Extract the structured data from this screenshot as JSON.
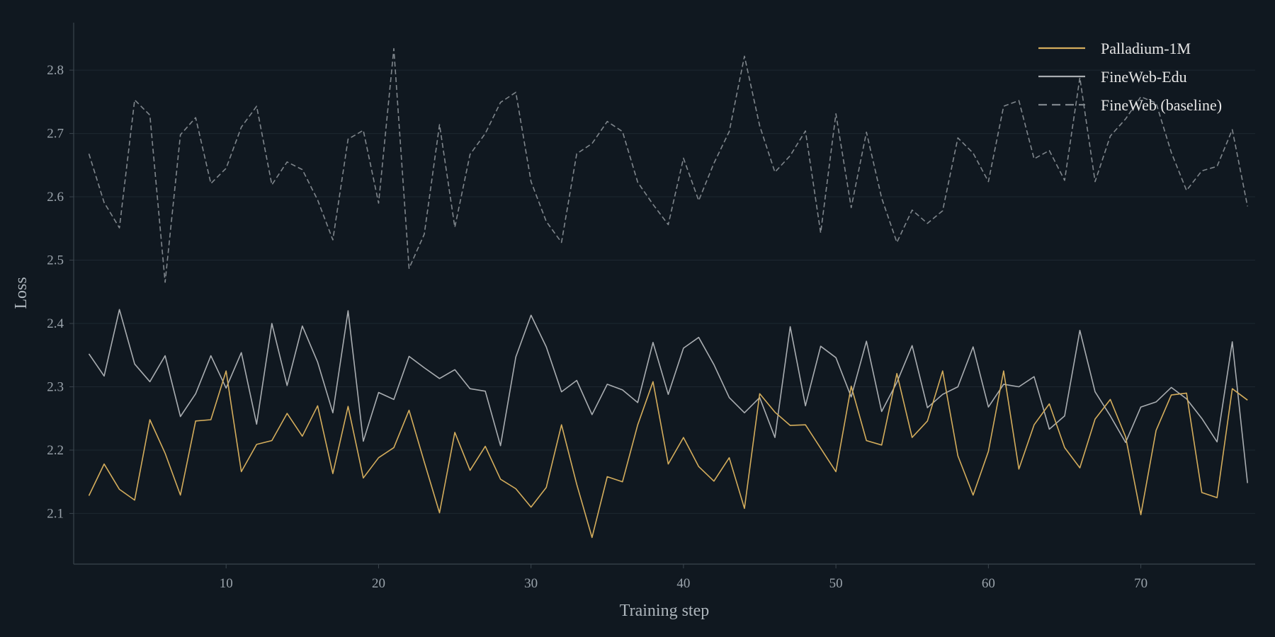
{
  "chart_data": {
    "type": "line",
    "title": "",
    "xlabel": "Training step",
    "ylabel": "Loss",
    "xlim": [
      0,
      77.5
    ],
    "ylim": [
      2.02,
      2.875
    ],
    "xticks": [
      10,
      20,
      30,
      40,
      50,
      60,
      70
    ],
    "yticks": [
      2.1,
      2.2,
      2.3,
      2.4,
      2.5,
      2.6,
      2.7,
      2.8
    ],
    "grid": true,
    "legend_position": "top-right",
    "x": [
      1,
      2,
      3,
      4,
      5,
      6,
      7,
      8,
      9,
      10,
      11,
      12,
      13,
      14,
      15,
      16,
      17,
      18,
      19,
      20,
      21,
      22,
      23,
      24,
      25,
      26,
      27,
      28,
      29,
      30,
      31,
      32,
      33,
      34,
      35,
      36,
      37,
      38,
      39,
      40,
      41,
      42,
      43,
      44,
      45,
      46,
      47,
      48,
      49,
      50,
      51,
      52,
      53,
      54,
      55,
      56,
      57,
      58,
      59,
      60,
      61,
      62,
      63,
      64,
      65,
      66,
      67,
      68,
      69,
      70,
      71,
      72,
      73,
      74,
      75,
      76,
      77
    ],
    "series": [
      {
        "name": "Palladium-1M",
        "color": "#d4ad5c",
        "style": "solid",
        "values": [
          2.128,
          2.178,
          2.138,
          2.121,
          2.248,
          2.195,
          2.129,
          2.246,
          2.248,
          2.325,
          2.166,
          2.209,
          2.215,
          2.258,
          2.222,
          2.27,
          2.163,
          2.269,
          2.156,
          2.188,
          2.204,
          2.263,
          2.181,
          2.101,
          2.228,
          2.168,
          2.206,
          2.154,
          2.139,
          2.11,
          2.141,
          2.24,
          2.146,
          2.062,
          2.158,
          2.15,
          2.24,
          2.308,
          2.178,
          2.22,
          2.174,
          2.151,
          2.188,
          2.108,
          2.289,
          2.26,
          2.239,
          2.24,
          2.203,
          2.166,
          2.301,
          2.215,
          2.208,
          2.321,
          2.22,
          2.246,
          2.325,
          2.191,
          2.129,
          2.198,
          2.325,
          2.17,
          2.24,
          2.273,
          2.204,
          2.172,
          2.249,
          2.28,
          2.221,
          2.098,
          2.231,
          2.287,
          2.29,
          2.133,
          2.125,
          2.297,
          2.279
        ]
      },
      {
        "name": "FineWeb-Edu",
        "color": "#a9adb1",
        "style": "solid",
        "values": [
          2.352,
          2.317,
          2.422,
          2.336,
          2.308,
          2.349,
          2.253,
          2.289,
          2.349,
          2.298,
          2.354,
          2.241,
          2.4,
          2.302,
          2.396,
          2.339,
          2.259,
          2.42,
          2.214,
          2.291,
          2.28,
          2.348,
          2.33,
          2.313,
          2.327,
          2.297,
          2.293,
          2.207,
          2.347,
          2.413,
          2.363,
          2.292,
          2.31,
          2.256,
          2.304,
          2.295,
          2.275,
          2.37,
          2.288,
          2.361,
          2.378,
          2.335,
          2.283,
          2.259,
          2.283,
          2.22,
          2.395,
          2.27,
          2.364,
          2.346,
          2.284,
          2.372,
          2.261,
          2.307,
          2.365,
          2.267,
          2.288,
          2.3,
          2.363,
          2.268,
          2.304,
          2.3,
          2.316,
          2.233,
          2.254,
          2.389,
          2.292,
          2.254,
          2.212,
          2.268,
          2.276,
          2.299,
          2.281,
          2.25,
          2.213,
          2.371,
          2.148
        ]
      },
      {
        "name": "FineWeb (baseline)",
        "color": "#7f868c",
        "style": "dashed",
        "values": [
          2.668,
          2.591,
          2.551,
          2.753,
          2.729,
          2.465,
          2.698,
          2.725,
          2.621,
          2.645,
          2.71,
          2.743,
          2.619,
          2.655,
          2.643,
          2.595,
          2.532,
          2.691,
          2.705,
          2.59,
          2.834,
          2.487,
          2.541,
          2.714,
          2.552,
          2.667,
          2.7,
          2.749,
          2.765,
          2.624,
          2.561,
          2.528,
          2.668,
          2.684,
          2.719,
          2.703,
          2.623,
          2.588,
          2.556,
          2.661,
          2.594,
          2.653,
          2.703,
          2.822,
          2.712,
          2.639,
          2.665,
          2.704,
          2.543,
          2.731,
          2.583,
          2.702,
          2.598,
          2.528,
          2.579,
          2.558,
          2.578,
          2.693,
          2.669,
          2.624,
          2.743,
          2.752,
          2.66,
          2.673,
          2.626,
          2.788,
          2.624,
          2.696,
          2.723,
          2.758,
          2.748,
          2.67,
          2.61,
          2.641,
          2.648,
          2.706,
          2.585
        ]
      }
    ]
  }
}
